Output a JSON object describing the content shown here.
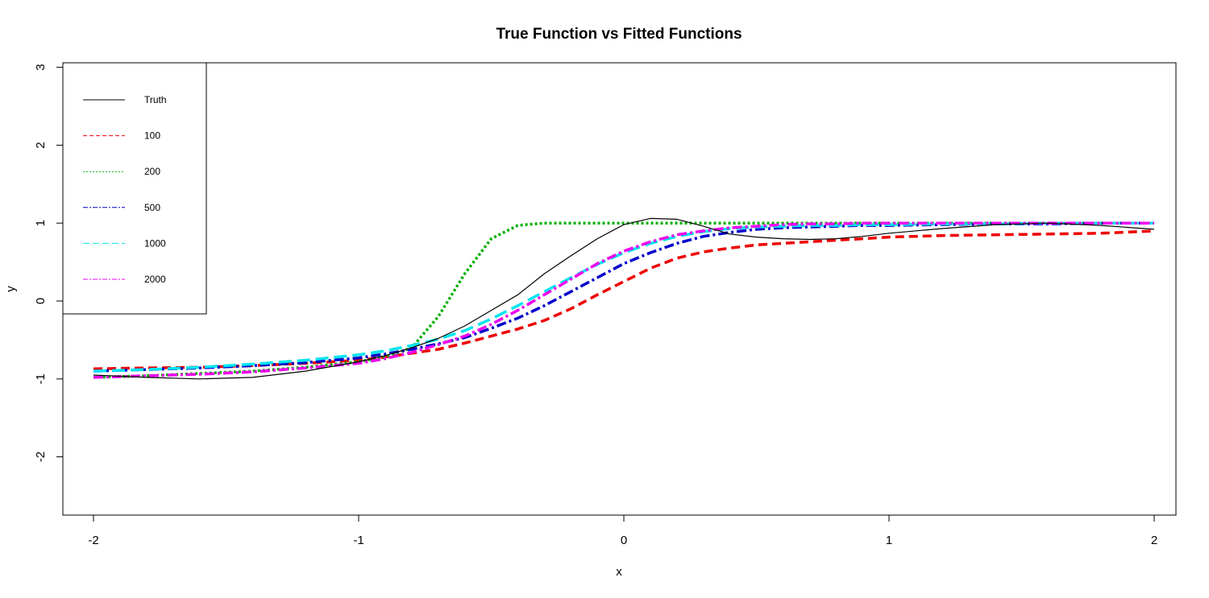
{
  "chart_data": {
    "type": "line",
    "title": "True Function vs Fitted Functions",
    "xlabel": "x",
    "ylabel": "y",
    "xlim": [
      -2,
      2
    ],
    "ylim": [
      -2.7,
      3.05
    ],
    "x_ticks": [
      -2,
      -1,
      0,
      1,
      2
    ],
    "x_tick_labels": [
      "-2",
      "-1",
      "0",
      "1",
      "2"
    ],
    "y_ticks": [
      -2,
      -1,
      0,
      1,
      2,
      3
    ],
    "y_tick_labels": [
      "-2",
      "-1",
      "0",
      "1",
      "2",
      "3"
    ],
    "grid": false,
    "legend_position": "top-left",
    "x": [
      -2.0,
      -1.8,
      -1.6,
      -1.4,
      -1.2,
      -1.0,
      -0.9,
      -0.8,
      -0.7,
      -0.6,
      -0.5,
      -0.4,
      -0.3,
      -0.2,
      -0.1,
      0.0,
      0.1,
      0.2,
      0.3,
      0.4,
      0.5,
      0.6,
      0.7,
      0.8,
      0.9,
      1.0,
      1.2,
      1.4,
      1.6,
      1.8,
      2.0
    ],
    "series": [
      {
        "name": "Truth",
        "color": "#000000",
        "dash": "",
        "width": 1.2,
        "values": [
          -0.95,
          -0.98,
          -1.0,
          -0.98,
          -0.9,
          -0.78,
          -0.7,
          -0.6,
          -0.48,
          -0.32,
          -0.12,
          0.08,
          0.35,
          0.58,
          0.8,
          0.98,
          1.06,
          1.05,
          0.96,
          0.86,
          0.82,
          0.8,
          0.79,
          0.8,
          0.83,
          0.87,
          0.93,
          0.98,
          1.0,
          0.97,
          0.92
        ]
      },
      {
        "name": "100",
        "color": "#ee0000",
        "dash": "11,6",
        "width": 3.5,
        "values": [
          -0.87,
          -0.86,
          -0.85,
          -0.83,
          -0.8,
          -0.76,
          -0.72,
          -0.67,
          -0.62,
          -0.54,
          -0.45,
          -0.36,
          -0.25,
          -0.1,
          0.08,
          0.25,
          0.42,
          0.55,
          0.63,
          0.68,
          0.72,
          0.74,
          0.76,
          0.78,
          0.8,
          0.82,
          0.84,
          0.85,
          0.86,
          0.87,
          0.9
        ]
      },
      {
        "name": "200",
        "color": "#00b000",
        "dash": "3,3",
        "width": 3.5,
        "values": [
          -0.98,
          -0.96,
          -0.93,
          -0.9,
          -0.85,
          -0.78,
          -0.72,
          -0.6,
          -0.2,
          0.35,
          0.8,
          0.97,
          1.0,
          1.0,
          1.0,
          1.0,
          1.0,
          1.0,
          1.0,
          1.0,
          1.0,
          1.0,
          1.0,
          1.0,
          1.0,
          1.0,
          1.0,
          1.0,
          1.0,
          1.0,
          1.0
        ]
      },
      {
        "name": "500",
        "color": "#0000cc",
        "dash": "12,4,3,4",
        "width": 3.5,
        "values": [
          -0.9,
          -0.88,
          -0.86,
          -0.83,
          -0.79,
          -0.73,
          -0.68,
          -0.62,
          -0.55,
          -0.47,
          -0.35,
          -0.22,
          -0.06,
          0.12,
          0.3,
          0.48,
          0.62,
          0.74,
          0.83,
          0.88,
          0.92,
          0.94,
          0.95,
          0.96,
          0.97,
          0.97,
          0.98,
          0.99,
          0.99,
          1.0,
          1.0
        ]
      },
      {
        "name": "1000",
        "color": "#00e5ee",
        "dash": "16,7",
        "width": 3.5,
        "values": [
          -0.9,
          -0.88,
          -0.85,
          -0.81,
          -0.76,
          -0.69,
          -0.64,
          -0.57,
          -0.49,
          -0.38,
          -0.23,
          -0.06,
          0.12,
          0.3,
          0.47,
          0.62,
          0.74,
          0.83,
          0.89,
          0.93,
          0.95,
          0.96,
          0.97,
          0.97,
          0.98,
          0.98,
          0.99,
          0.99,
          1.0,
          1.0,
          1.0
        ]
      },
      {
        "name": "2000",
        "color": "#ee00ee",
        "dash": "12,4,3,4",
        "width": 3.5,
        "values": [
          -0.98,
          -0.96,
          -0.94,
          -0.91,
          -0.86,
          -0.8,
          -0.74,
          -0.66,
          -0.56,
          -0.45,
          -0.3,
          -0.12,
          0.08,
          0.28,
          0.48,
          0.64,
          0.76,
          0.85,
          0.9,
          0.94,
          0.96,
          0.98,
          0.99,
          0.99,
          1.0,
          1.0,
          1.0,
          1.0,
          1.0,
          1.0,
          1.0
        ]
      }
    ]
  }
}
